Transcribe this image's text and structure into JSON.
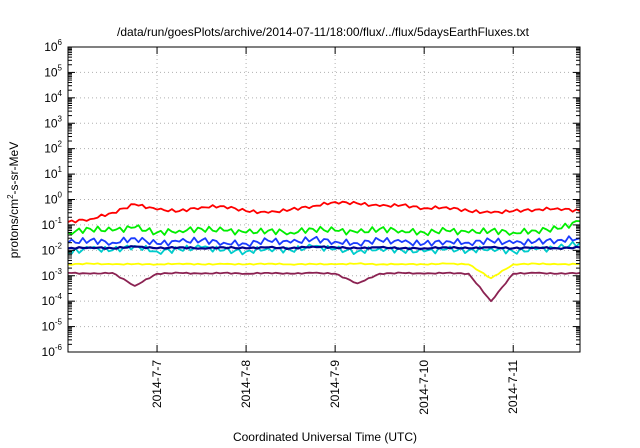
{
  "chart_data": {
    "type": "line",
    "title": "/data/run/goesPlots/archive/2014-07-11/18:00/flux/../flux/5daysEarthFluxes.txt",
    "xlabel": "Coordinated Universal Time (UTC)",
    "ylabel": {
      "prefix": "protons/cm",
      "superscript": "2",
      "suffix": "-s-sr-MeV"
    },
    "yscale": "log",
    "ylim": [
      1e-06,
      1000000.0
    ],
    "y_ticks": [
      {
        "value": 1e-06,
        "base": "10",
        "exp": "-6"
      },
      {
        "value": 1e-05,
        "base": "10",
        "exp": "-5"
      },
      {
        "value": 0.0001,
        "base": "10",
        "exp": "-4"
      },
      {
        "value": 0.001,
        "base": "10",
        "exp": "-3"
      },
      {
        "value": 0.01,
        "base": "10",
        "exp": "-2"
      },
      {
        "value": 0.1,
        "base": "10",
        "exp": "-1"
      },
      {
        "value": 1,
        "base": "10",
        "exp": "0"
      },
      {
        "value": 10,
        "base": "10",
        "exp": "1"
      },
      {
        "value": 100,
        "base": "10",
        "exp": "2"
      },
      {
        "value": 1000,
        "base": "10",
        "exp": "3"
      },
      {
        "value": 10000,
        "base": "10",
        "exp": "4"
      },
      {
        "value": 100000,
        "base": "10",
        "exp": "5"
      },
      {
        "value": 1000000,
        "base": "10",
        "exp": "6"
      }
    ],
    "xlim": [
      "2014-07-06 00:00",
      "2014-07-11 18:00"
    ],
    "x_ticks": [
      {
        "value": "2014-07-07",
        "label": "2014-7-7"
      },
      {
        "value": "2014-07-08",
        "label": "2014-7-8"
      },
      {
        "value": "2014-07-09",
        "label": "2014-7-9"
      },
      {
        "value": "2014-07-10",
        "label": "2014-7-10"
      },
      {
        "value": "2014-07-11",
        "label": "2014-7-11"
      }
    ],
    "grid": true,
    "legend": "none",
    "series": [
      {
        "color": "#ff0000",
        "x": [
          "2014-07-06 00:00",
          "2014-07-06 06:00",
          "2014-07-06 12:00",
          "2014-07-06 18:00",
          "2014-07-07 00:00",
          "2014-07-07 06:00",
          "2014-07-07 12:00",
          "2014-07-07 18:00",
          "2014-07-08 00:00",
          "2014-07-08 06:00",
          "2014-07-08 12:00",
          "2014-07-08 18:00",
          "2014-07-09 00:00",
          "2014-07-09 06:00",
          "2014-07-09 12:00",
          "2014-07-09 18:00",
          "2014-07-10 00:00",
          "2014-07-10 06:00",
          "2014-07-10 12:00",
          "2014-07-10 18:00",
          "2014-07-11 00:00",
          "2014-07-11 06:00",
          "2014-07-11 12:00",
          "2014-07-11 18:00"
        ],
        "y": [
          0.13,
          0.17,
          0.3,
          0.65,
          0.4,
          0.35,
          0.5,
          0.55,
          0.35,
          0.3,
          0.4,
          0.55,
          0.8,
          0.7,
          0.55,
          0.6,
          0.45,
          0.5,
          0.35,
          0.3,
          0.35,
          0.4,
          0.45,
          0.35
        ]
      },
      {
        "color": "#00ee00",
        "x": [
          "2014-07-06 00:00",
          "2014-07-06 06:00",
          "2014-07-06 12:00",
          "2014-07-06 18:00",
          "2014-07-07 00:00",
          "2014-07-07 06:00",
          "2014-07-07 12:00",
          "2014-07-07 18:00",
          "2014-07-08 00:00",
          "2014-07-08 06:00",
          "2014-07-08 12:00",
          "2014-07-08 18:00",
          "2014-07-09 00:00",
          "2014-07-09 06:00",
          "2014-07-09 12:00",
          "2014-07-09 18:00",
          "2014-07-10 00:00",
          "2014-07-10 06:00",
          "2014-07-10 12:00",
          "2014-07-10 18:00",
          "2014-07-11 00:00",
          "2014-07-11 06:00",
          "2014-07-11 12:00",
          "2014-07-11 18:00"
        ],
        "y": [
          0.05,
          0.07,
          0.06,
          0.08,
          0.05,
          0.06,
          0.07,
          0.06,
          0.05,
          0.06,
          0.05,
          0.07,
          0.06,
          0.05,
          0.07,
          0.06,
          0.05,
          0.06,
          0.05,
          0.06,
          0.05,
          0.06,
          0.07,
          0.14
        ]
      },
      {
        "color": "#00cccc",
        "x": [
          "2014-07-06 00:00",
          "2014-07-06 06:00",
          "2014-07-06 12:00",
          "2014-07-06 18:00",
          "2014-07-07 00:00",
          "2014-07-07 06:00",
          "2014-07-07 12:00",
          "2014-07-07 18:00",
          "2014-07-08 00:00",
          "2014-07-08 06:00",
          "2014-07-08 12:00",
          "2014-07-08 18:00",
          "2014-07-09 00:00",
          "2014-07-09 06:00",
          "2014-07-09 12:00",
          "2014-07-09 18:00",
          "2014-07-10 00:00",
          "2014-07-10 06:00",
          "2014-07-10 12:00",
          "2014-07-10 18:00",
          "2014-07-11 00:00",
          "2014-07-11 06:00",
          "2014-07-11 12:00",
          "2014-07-11 18:00"
        ],
        "y": [
          0.008,
          0.012,
          0.01,
          0.015,
          0.009,
          0.011,
          0.013,
          0.01,
          0.009,
          0.012,
          0.01,
          0.014,
          0.011,
          0.009,
          0.012,
          0.01,
          0.009,
          0.011,
          0.01,
          0.012,
          0.009,
          0.011,
          0.012,
          0.02
        ]
      },
      {
        "color": "#1a3cff",
        "x": [
          "2014-07-06 00:00",
          "2014-07-06 06:00",
          "2014-07-06 12:00",
          "2014-07-06 18:00",
          "2014-07-07 00:00",
          "2014-07-07 06:00",
          "2014-07-07 12:00",
          "2014-07-07 18:00",
          "2014-07-08 00:00",
          "2014-07-08 06:00",
          "2014-07-08 12:00",
          "2014-07-08 18:00",
          "2014-07-09 00:00",
          "2014-07-09 06:00",
          "2014-07-09 12:00",
          "2014-07-09 18:00",
          "2014-07-10 00:00",
          "2014-07-10 06:00",
          "2014-07-10 12:00",
          "2014-07-10 18:00",
          "2014-07-11 00:00",
          "2014-07-11 06:00",
          "2014-07-11 12:00",
          "2014-07-11 18:00"
        ],
        "y": [
          0.02,
          0.025,
          0.02,
          0.03,
          0.018,
          0.022,
          0.025,
          0.02,
          0.018,
          0.024,
          0.02,
          0.028,
          0.022,
          0.019,
          0.025,
          0.021,
          0.018,
          0.023,
          0.02,
          0.024,
          0.019,
          0.022,
          0.025,
          0.03
        ]
      },
      {
        "color": "#00008b",
        "x": [
          "2014-07-06 00:00",
          "2014-07-06 06:00",
          "2014-07-06 12:00",
          "2014-07-06 18:00",
          "2014-07-07 00:00",
          "2014-07-07 06:00",
          "2014-07-07 12:00",
          "2014-07-07 18:00",
          "2014-07-08 00:00",
          "2014-07-08 06:00",
          "2014-07-08 12:00",
          "2014-07-08 18:00",
          "2014-07-09 00:00",
          "2014-07-09 06:00",
          "2014-07-09 12:00",
          "2014-07-09 18:00",
          "2014-07-10 00:00",
          "2014-07-10 06:00",
          "2014-07-10 12:00",
          "2014-07-10 18:00",
          "2014-07-11 00:00",
          "2014-07-11 06:00",
          "2014-07-11 12:00",
          "2014-07-11 18:00"
        ],
        "y": [
          0.012,
          0.013,
          0.012,
          0.014,
          0.012,
          0.013,
          0.012,
          0.013,
          0.012,
          0.013,
          0.012,
          0.014,
          0.013,
          0.012,
          0.013,
          0.012,
          0.012,
          0.013,
          0.012,
          0.013,
          0.012,
          0.013,
          0.012,
          0.013
        ]
      },
      {
        "color": "#ffff00",
        "x": [
          "2014-07-06 00:00",
          "2014-07-06 06:00",
          "2014-07-06 12:00",
          "2014-07-06 18:00",
          "2014-07-07 00:00",
          "2014-07-07 06:00",
          "2014-07-07 12:00",
          "2014-07-07 18:00",
          "2014-07-08 00:00",
          "2014-07-08 06:00",
          "2014-07-08 12:00",
          "2014-07-08 18:00",
          "2014-07-09 00:00",
          "2014-07-09 06:00",
          "2014-07-09 12:00",
          "2014-07-09 18:00",
          "2014-07-10 00:00",
          "2014-07-10 06:00",
          "2014-07-10 12:00",
          "2014-07-10 18:00",
          "2014-07-11 00:00",
          "2014-07-11 06:00",
          "2014-07-11 12:00",
          "2014-07-11 18:00"
        ],
        "y": [
          0.0028,
          0.003,
          0.0028,
          0.0029,
          0.0028,
          0.003,
          0.0028,
          0.0029,
          0.0028,
          0.003,
          0.0028,
          0.0029,
          0.0028,
          0.003,
          0.0028,
          0.0029,
          0.0028,
          0.003,
          0.0028,
          0.0008,
          0.0028,
          0.003,
          0.0028,
          0.0029
        ]
      },
      {
        "color": "#8b2252",
        "x": [
          "2014-07-06 00:00",
          "2014-07-06 06:00",
          "2014-07-06 12:00",
          "2014-07-06 18:00",
          "2014-07-07 00:00",
          "2014-07-07 06:00",
          "2014-07-07 12:00",
          "2014-07-07 18:00",
          "2014-07-08 00:00",
          "2014-07-08 06:00",
          "2014-07-08 12:00",
          "2014-07-08 18:00",
          "2014-07-09 00:00",
          "2014-07-09 06:00",
          "2014-07-09 12:00",
          "2014-07-09 18:00",
          "2014-07-10 00:00",
          "2014-07-10 06:00",
          "2014-07-10 12:00",
          "2014-07-10 18:00",
          "2014-07-11 00:00",
          "2014-07-11 06:00",
          "2014-07-11 12:00",
          "2014-07-11 18:00"
        ],
        "y": [
          0.0013,
          0.0012,
          0.0013,
          0.0004,
          0.0012,
          0.0013,
          0.0012,
          0.0013,
          0.0012,
          0.0013,
          0.0012,
          0.0013,
          0.0012,
          0.0005,
          0.0012,
          0.0013,
          0.0012,
          0.0013,
          0.0012,
          0.0001,
          0.0012,
          0.0013,
          0.0012,
          0.0013
        ]
      }
    ]
  }
}
